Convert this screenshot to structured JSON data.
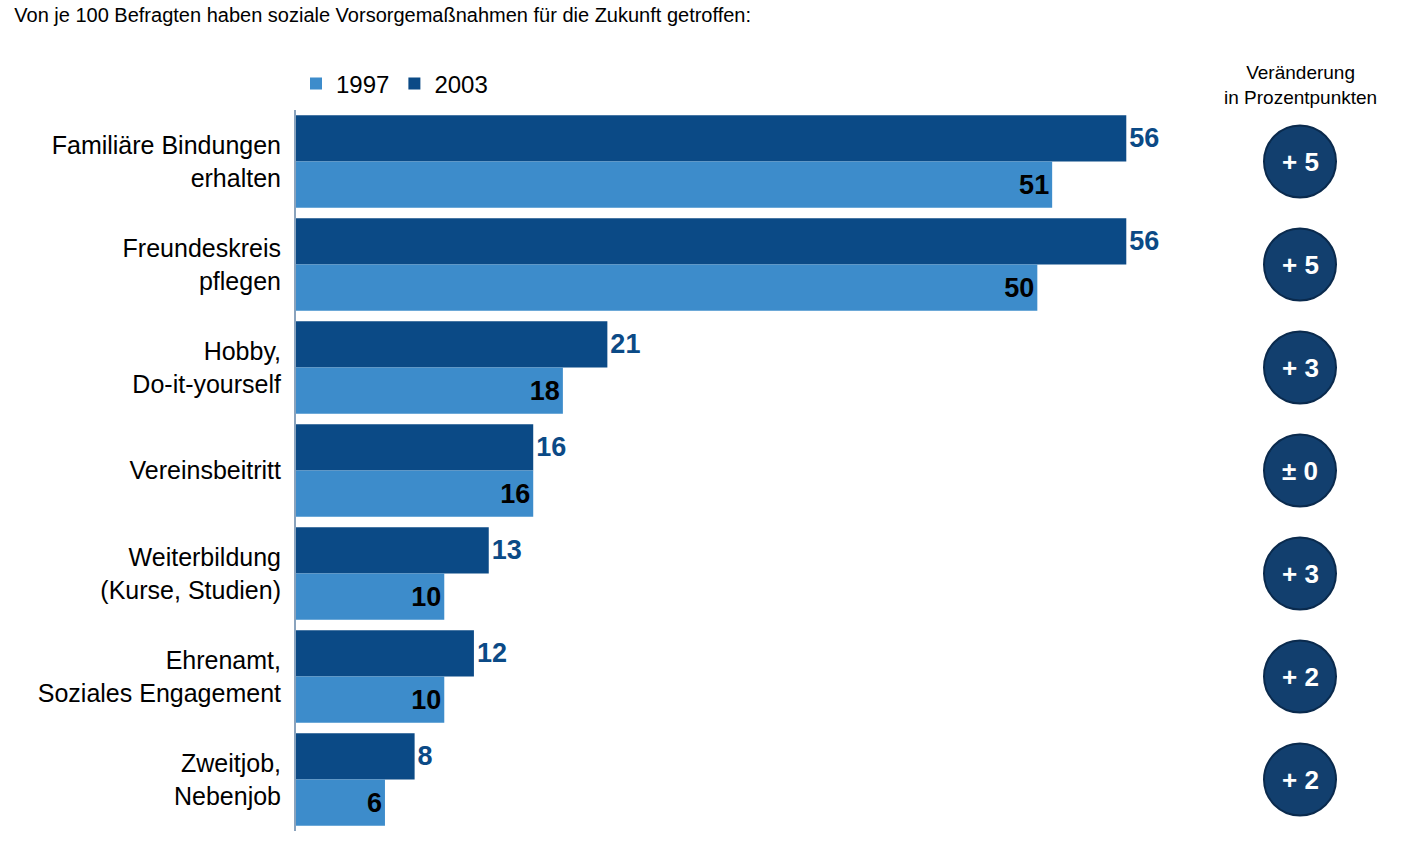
{
  "chart_data": {
    "type": "bar",
    "title": "Von je 100 Befragten haben soziale Vorsorgemaßnahmen für die Zukunft getroffen:",
    "orientation": "horizontal",
    "categories": [
      "Familiäre Bindungen erhalten",
      "Freundeskreis pflegen",
      "Hobby, Do-it-yourself",
      "Vereinsbeitritt",
      "Weiterbildung (Kurse, Studien)",
      "Ehrenamt, Soziales Engagement",
      "Zweitjob, Nebenjob"
    ],
    "series": [
      {
        "name": "1997",
        "color": "#3d8ccb",
        "values": [
          51,
          50,
          18,
          16,
          10,
          10,
          6
        ]
      },
      {
        "name": "2003",
        "color": "#0b4a86",
        "values": [
          56,
          56,
          21,
          16,
          13,
          12,
          8
        ]
      }
    ],
    "change_title": "Veränderung in Prozentpunkten",
    "changes": [
      {
        "value": 5,
        "label": "+ 5"
      },
      {
        "value": 5,
        "label": "+ 5"
      },
      {
        "value": 3,
        "label": "+ 3"
      },
      {
        "value": 0,
        "label": "± 0"
      },
      {
        "value": 3,
        "label": "+ 3"
      },
      {
        "value": 2,
        "label": "+ 2"
      },
      {
        "value": 2,
        "label": "+ 2"
      }
    ],
    "xlim": [
      0,
      60
    ],
    "grid": false,
    "legend": "top",
    "data_labels": true,
    "tick_labels": "y"
  }
}
